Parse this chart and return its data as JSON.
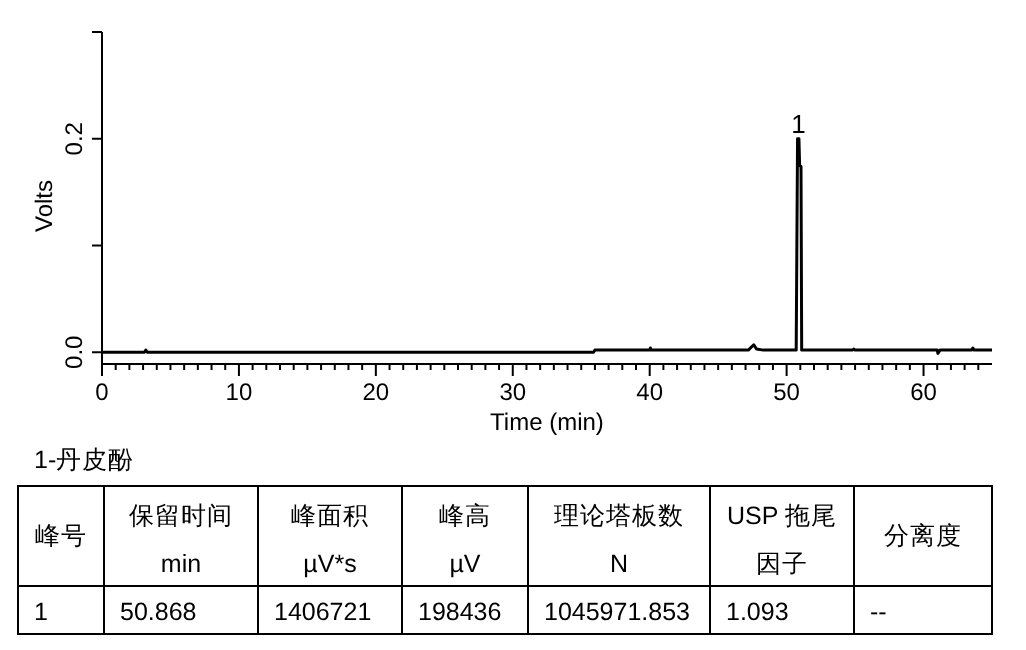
{
  "chart_data": {
    "type": "line",
    "xlabel": "Time (min)",
    "ylabel": "Volts",
    "color": "#000000",
    "grid": false,
    "marker": "none",
    "line_style": "solid",
    "xlim": [
      0,
      65
    ],
    "ylim": [
      -0.011,
      0.3
    ],
    "xticks": [
      0,
      {
        "value": 1,
        "label": null
      },
      {
        "value": 2,
        "label": null
      },
      {
        "value": 3,
        "label": null
      },
      {
        "value": 4,
        "label": null
      },
      {
        "value": 5,
        "label": null
      },
      {
        "value": 6,
        "label": null
      },
      {
        "value": 7,
        "label": null
      },
      {
        "value": 8,
        "label": null
      },
      {
        "value": 9,
        "label": null
      },
      10,
      {
        "value": 11,
        "label": null
      },
      {
        "value": 12,
        "label": null
      },
      {
        "value": 13,
        "label": null
      },
      {
        "value": 14,
        "label": null
      },
      {
        "value": 15,
        "label": null
      },
      {
        "value": 16,
        "label": null
      },
      {
        "value": 17,
        "label": null
      },
      {
        "value": 18,
        "label": null
      },
      {
        "value": 19,
        "label": null
      },
      20,
      {
        "value": 21,
        "label": null
      },
      {
        "value": 22,
        "label": null
      },
      {
        "value": 23,
        "label": null
      },
      {
        "value": 24,
        "label": null
      },
      {
        "value": 25,
        "label": null
      },
      {
        "value": 26,
        "label": null
      },
      {
        "value": 27,
        "label": null
      },
      {
        "value": 28,
        "label": null
      },
      {
        "value": 29,
        "label": null
      },
      30,
      {
        "value": 31,
        "label": null
      },
      {
        "value": 32,
        "label": null
      },
      {
        "value": 33,
        "label": null
      },
      {
        "value": 34,
        "label": null
      },
      {
        "value": 35,
        "label": null
      },
      {
        "value": 36,
        "label": null
      },
      {
        "value": 37,
        "label": null
      },
      {
        "value": 38,
        "label": null
      },
      {
        "value": 39,
        "label": null
      },
      40,
      {
        "value": 41,
        "label": null
      },
      {
        "value": 42,
        "label": null
      },
      {
        "value": 43,
        "label": null
      },
      {
        "value": 44,
        "label": null
      },
      {
        "value": 45,
        "label": null
      },
      {
        "value": 46,
        "label": null
      },
      {
        "value": 47,
        "label": null
      },
      {
        "value": 48,
        "label": null
      },
      {
        "value": 49,
        "label": null
      },
      50,
      {
        "value": 51,
        "label": null
      },
      {
        "value": 52,
        "label": null
      },
      {
        "value": 53,
        "label": null
      },
      {
        "value": 54,
        "label": null
      },
      {
        "value": 55,
        "label": null
      },
      {
        "value": 56,
        "label": null
      },
      {
        "value": 57,
        "label": null
      },
      {
        "value": 58,
        "label": null
      },
      {
        "value": 59,
        "label": null
      },
      60,
      {
        "value": 61,
        "label": null
      },
      {
        "value": 62,
        "label": null
      },
      {
        "value": 63,
        "label": null
      },
      {
        "value": 64,
        "label": null
      }
    ],
    "yticks": [
      {
        "value": 0,
        "label": "0.0"
      },
      {
        "value": 0.1,
        "label": null
      },
      0.2,
      {
        "value": 0.3,
        "label": null
      }
    ],
    "x": [
      0,
      3.1,
      3.2,
      3.3,
      35.9,
      36,
      40,
      40.05,
      40.1,
      47.2,
      47.6,
      47.8,
      48.3,
      50.7,
      50.8,
      50.9,
      50.95,
      51.05,
      51.1,
      54.8,
      54.9,
      55,
      61,
      61.05,
      61.2,
      63.5,
      63.6,
      63.7,
      65
    ],
    "values": [
      0,
      0,
      0.002,
      0,
      0,
      0.002,
      0.002,
      0.004,
      0.002,
      0.002,
      0.007,
      0.003,
      0.002,
      0.002,
      0.2,
      0.2,
      0.175,
      0.174,
      0.002,
      0.002,
      0.003,
      0.002,
      0.002,
      -0.001,
      0.002,
      0.002,
      0.004,
      0.002,
      0.002
    ],
    "annotations": [
      {
        "text": "1",
        "x": 50.868,
        "y": 0.2
      },
      "1-丹皮酚",
      "峰号",
      "保留时间",
      "min",
      "峰面积",
      "µV*s",
      "峰高",
      "µV",
      "理论塔板数",
      "N",
      "USP 拖尾",
      "因子",
      "分离度",
      "1",
      "50.868",
      "1406721",
      "198436",
      "1045971.853",
      "1.093",
      "--"
    ]
  }
}
